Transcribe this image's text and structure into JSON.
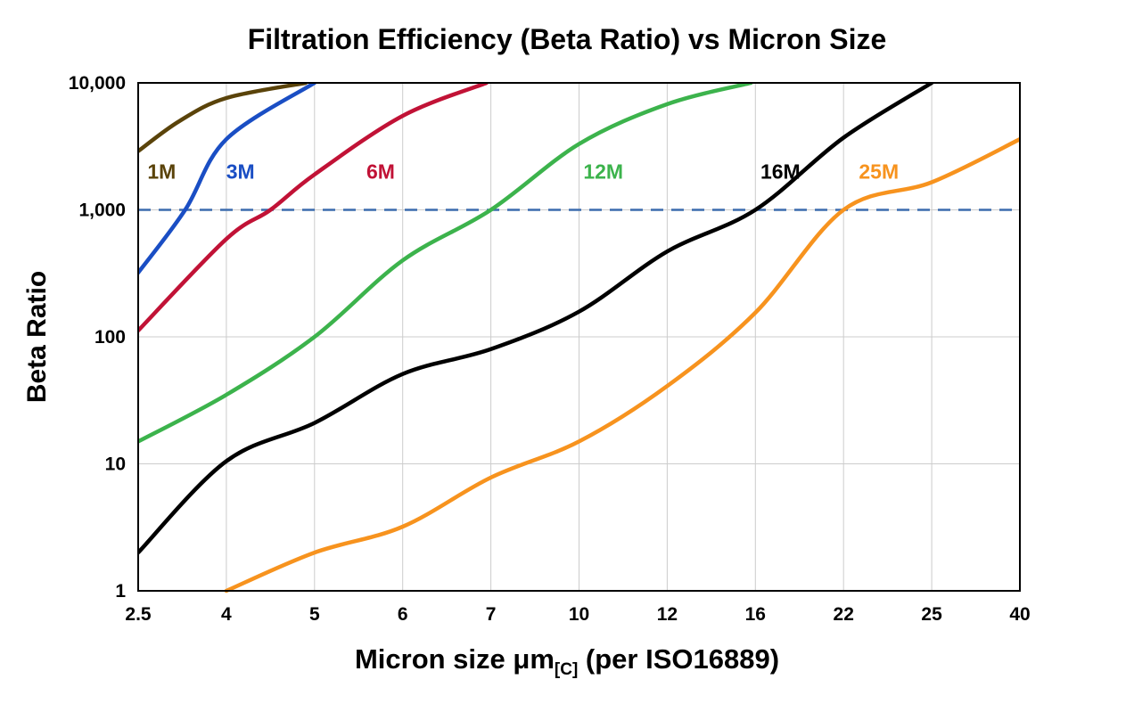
{
  "chart_data": {
    "type": "line",
    "title": "Filtration Efficiency (Beta Ratio) vs Micron Size",
    "ylabel": "Beta Ratio",
    "xlabel_parts": {
      "main": "Micron size μm",
      "sub": "[C]",
      "tail": " (per ISO16889)"
    },
    "x_scale": "categorical-even-spacing",
    "x_ticks": [
      2.5,
      4,
      5,
      6,
      7,
      10,
      12,
      16,
      22,
      25,
      40
    ],
    "x_tick_labels": [
      "2.5",
      "4",
      "5",
      "6",
      "7",
      "10",
      "12",
      "16",
      "22",
      "25",
      "40"
    ],
    "y_scale": "log",
    "ylim": [
      1,
      10000
    ],
    "y_ticks": [
      1,
      10,
      100,
      1000,
      10000
    ],
    "y_tick_labels": [
      "1",
      "10",
      "100",
      "1,000",
      "10,000"
    ],
    "grid": true,
    "grid_color": "#cccccc",
    "border_color": "#000000",
    "legend_position": "inline-labels",
    "reference_line": {
      "y": 1000,
      "style": "dashed",
      "color": "#3c6cae"
    },
    "series": [
      {
        "name": "1M",
        "color": "#5a430a",
        "points": [
          [
            2.5,
            2900
          ],
          [
            3.2,
            5000
          ],
          [
            4,
            7600
          ],
          [
            4.9,
            10000
          ]
        ],
        "label": {
          "x": 2.9,
          "y": 2000
        }
      },
      {
        "name": "3M",
        "color": "#1a4ec4",
        "points": [
          [
            2.5,
            320
          ],
          [
            3.3,
            1000
          ],
          [
            4,
            3600
          ],
          [
            5,
            10000
          ]
        ],
        "label": {
          "x": 4.16,
          "y": 2000
        }
      },
      {
        "name": "6M",
        "color": "#c11236",
        "points": [
          [
            2.5,
            112
          ],
          [
            4,
            590
          ],
          [
            4.5,
            1000
          ],
          [
            5,
            1900
          ],
          [
            6,
            5500
          ],
          [
            6.95,
            10000
          ]
        ],
        "label": {
          "x": 5.75,
          "y": 2000
        }
      },
      {
        "name": "12M",
        "color": "#3cb34c",
        "points": [
          [
            2.5,
            15
          ],
          [
            4,
            35
          ],
          [
            5,
            100
          ],
          [
            6,
            400
          ],
          [
            7,
            1000
          ],
          [
            10,
            3300
          ],
          [
            12,
            6800
          ],
          [
            15.8,
            10000
          ]
        ],
        "label": {
          "x": 10.55,
          "y": 2000
        }
      },
      {
        "name": "16M",
        "color": "#000000",
        "points": [
          [
            2.5,
            2
          ],
          [
            4,
            10.5
          ],
          [
            5,
            21
          ],
          [
            6,
            51
          ],
          [
            7,
            80
          ],
          [
            10,
            158
          ],
          [
            12,
            470
          ],
          [
            16,
            1000
          ],
          [
            22,
            3700
          ],
          [
            25,
            10000
          ]
        ],
        "label": {
          "x": 17.7,
          "y": 2000
        }
      },
      {
        "name": "25M",
        "color": "#f7931e",
        "points": [
          [
            4,
            1
          ],
          [
            5,
            2
          ],
          [
            6,
            3.2
          ],
          [
            7,
            7.8
          ],
          [
            10,
            15
          ],
          [
            12,
            41
          ],
          [
            16,
            155
          ],
          [
            22,
            1000
          ],
          [
            25,
            1650
          ],
          [
            40,
            3600
          ]
        ],
        "label": {
          "x": 23.2,
          "y": 2000
        }
      }
    ]
  }
}
